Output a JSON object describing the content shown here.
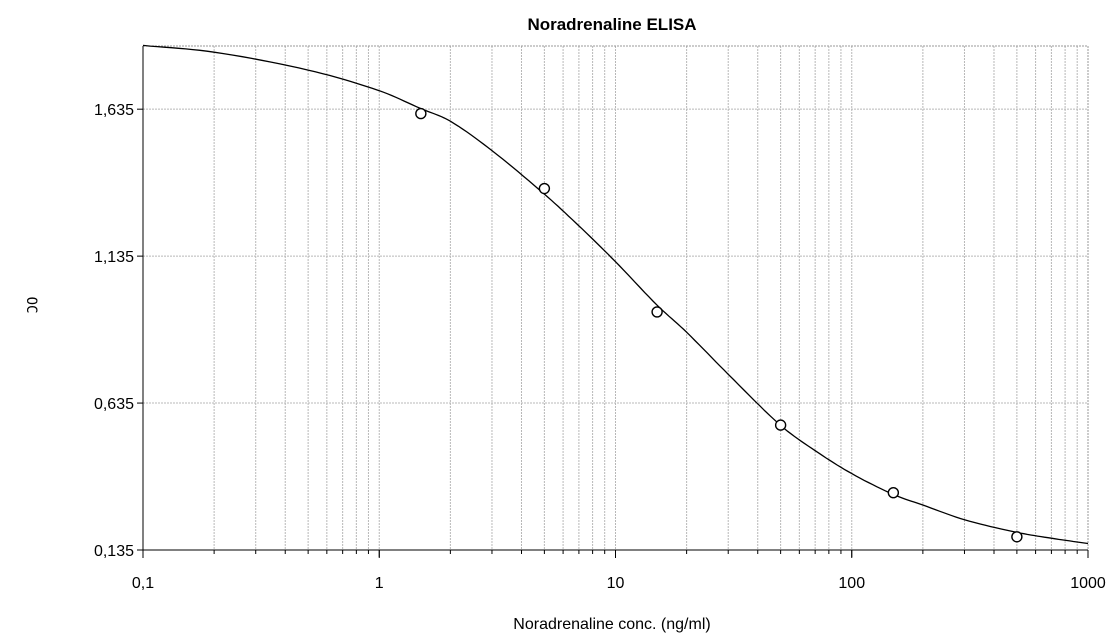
{
  "chart_data": {
    "type": "scatter",
    "title": "Noradrenaline ELISA",
    "xlabel": "Noradrenaline conc. (ng/ml)",
    "ylabel": "OC",
    "x_scale": "log",
    "xlim": [
      0.1,
      1000
    ],
    "ylim": [
      0.135,
      1.85
    ],
    "x_ticks": [
      0.1,
      1,
      10,
      100,
      1000
    ],
    "x_tick_labels": [
      "0,1",
      "1",
      "10",
      "100",
      "1000"
    ],
    "y_ticks": [
      0.135,
      0.635,
      1.135,
      1.635
    ],
    "y_tick_labels": [
      "0,135",
      "0,635",
      "1,135",
      "1,635"
    ],
    "grid": true,
    "series": [
      {
        "marker": "open-circle",
        "x": [
          1.5,
          5,
          15,
          50,
          150,
          500
        ],
        "y": [
          1.62,
          1.365,
          0.945,
          0.56,
          0.33,
          0.18
        ]
      }
    ],
    "fit_curve": {
      "type": "4PL",
      "x": [
        0.1,
        0.2,
        0.5,
        1,
        1.5,
        2,
        3,
        5,
        7,
        10,
        15,
        20,
        30,
        50,
        70,
        100,
        150,
        200,
        300,
        500,
        700,
        1000
      ],
      "y": [
        1.852,
        1.829,
        1.768,
        1.698,
        1.637,
        1.594,
        1.494,
        1.346,
        1.238,
        1.116,
        0.968,
        0.876,
        0.733,
        0.559,
        0.473,
        0.395,
        0.324,
        0.288,
        0.238,
        0.195,
        0.175,
        0.157
      ]
    }
  }
}
